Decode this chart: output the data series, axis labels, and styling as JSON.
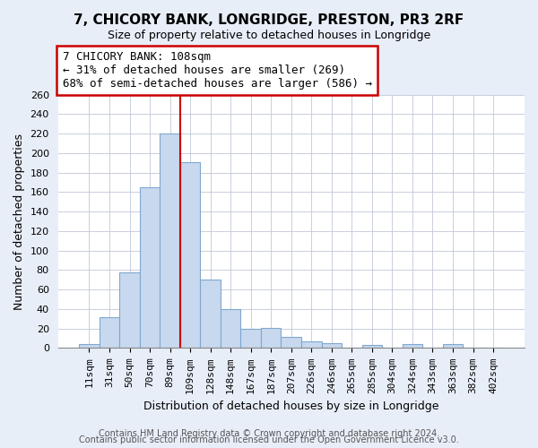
{
  "title": "7, CHICORY BANK, LONGRIDGE, PRESTON, PR3 2RF",
  "subtitle": "Size of property relative to detached houses in Longridge",
  "xlabel": "Distribution of detached houses by size in Longridge",
  "ylabel": "Number of detached properties",
  "bar_labels": [
    "11sqm",
    "31sqm",
    "50sqm",
    "70sqm",
    "89sqm",
    "109sqm",
    "128sqm",
    "148sqm",
    "167sqm",
    "187sqm",
    "207sqm",
    "226sqm",
    "246sqm",
    "265sqm",
    "285sqm",
    "304sqm",
    "324sqm",
    "343sqm",
    "363sqm",
    "382sqm",
    "402sqm"
  ],
  "bar_values": [
    4,
    32,
    78,
    165,
    220,
    191,
    70,
    40,
    20,
    21,
    11,
    7,
    5,
    0,
    3,
    0,
    4,
    0,
    4,
    0,
    0
  ],
  "bar_face_color": "#c8d8ee",
  "bar_edge_color": "#7fa8d0",
  "vline_color": "#cc0000",
  "annotation_line1": "7 CHICORY BANK: 108sqm",
  "annotation_line2": "← 31% of detached houses are smaller (269)",
  "annotation_line3": "68% of semi-detached houses are larger (586) →",
  "annotation_box_edge_color": "#cc0000",
  "ylim": [
    0,
    260
  ],
  "yticks": [
    0,
    20,
    40,
    60,
    80,
    100,
    120,
    140,
    160,
    180,
    200,
    220,
    240,
    260
  ],
  "bg_color": "#e8eef8",
  "plot_bg_color": "#ffffff",
  "footer_line1": "Contains HM Land Registry data © Crown copyright and database right 2024.",
  "footer_line2": "Contains public sector information licensed under the Open Government Licence v3.0.",
  "title_fontsize": 11,
  "subtitle_fontsize": 9,
  "axis_label_fontsize": 9,
  "tick_fontsize": 8,
  "annotation_fontsize": 9,
  "footer_fontsize": 7
}
